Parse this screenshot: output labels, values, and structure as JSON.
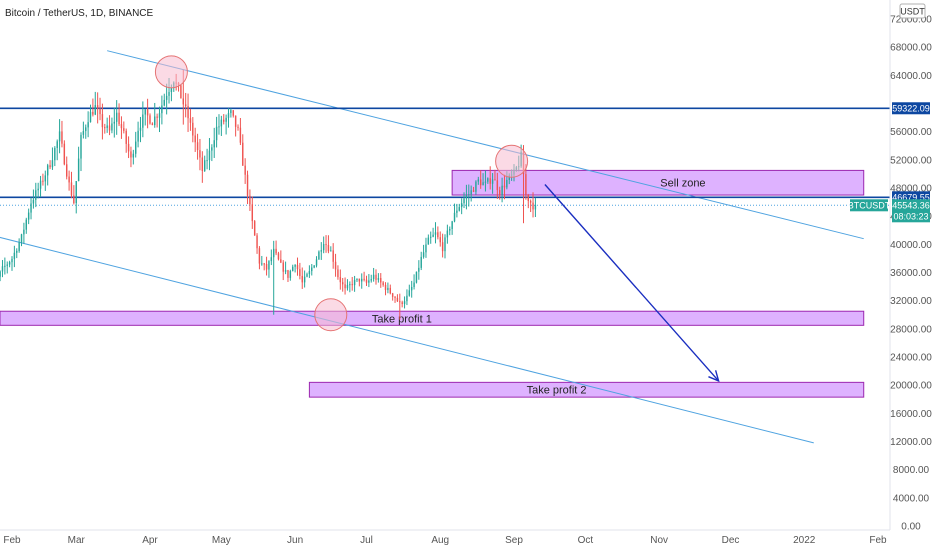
{
  "chart_data": {
    "type": "candlestick",
    "title": "Bitcoin / TetherUS, 1D, BINANCE",
    "currency_label": "USDT",
    "ylim": [
      0,
      75000
    ],
    "xlim_days": [
      0,
      365
    ],
    "y_ticks": [
      {
        "value": 0,
        "label": "0.00"
      },
      {
        "value": 4000,
        "label": "4000.00"
      },
      {
        "value": 8000,
        "label": "8000.00"
      },
      {
        "value": 12000,
        "label": "12000.00"
      },
      {
        "value": 16000,
        "label": "16000.00"
      },
      {
        "value": 20000,
        "label": "20000.00"
      },
      {
        "value": 24000,
        "label": "24000.00"
      },
      {
        "value": 28000,
        "label": "28000.00"
      },
      {
        "value": 32000,
        "label": "32000.00"
      },
      {
        "value": 36000,
        "label": "36000.00"
      },
      {
        "value": 40000,
        "label": "40000.00"
      },
      {
        "value": 44000,
        "label": "44000.00"
      },
      {
        "value": 48000,
        "label": "48000.00"
      },
      {
        "value": 52000,
        "label": "52000.00"
      },
      {
        "value": 56000,
        "label": "56000.00"
      },
      {
        "value": 60000,
        "label": "60000.00"
      },
      {
        "value": 64000,
        "label": "64000.00"
      },
      {
        "value": 68000,
        "label": "68000.00"
      },
      {
        "value": 72000,
        "label": "72000.00"
      }
    ],
    "x_ticks": [
      {
        "day": 12,
        "label": "Feb"
      },
      {
        "day": 39,
        "label": "Mar"
      },
      {
        "day": 70,
        "label": "Apr"
      },
      {
        "day": 100,
        "label": "May"
      },
      {
        "day": 131,
        "label": "Jun"
      },
      {
        "day": 161,
        "label": "Jul"
      },
      {
        "day": 192,
        "label": "Aug"
      },
      {
        "day": 223,
        "label": "Sep"
      },
      {
        "day": 253,
        "label": "Oct"
      },
      {
        "day": 284,
        "label": "Nov"
      },
      {
        "day": 314,
        "label": "Dec"
      },
      {
        "day": 345,
        "label": "2022"
      },
      {
        "day": 376,
        "label": "Feb"
      }
    ],
    "price_path": [
      [
        0,
        31500
      ],
      [
        4,
        34000
      ],
      [
        8,
        36500
      ],
      [
        12,
        38000
      ],
      [
        16,
        41000
      ],
      [
        20,
        46000
      ],
      [
        24,
        48500
      ],
      [
        28,
        51500
      ],
      [
        32,
        55500
      ],
      [
        36,
        48500
      ],
      [
        38,
        46000
      ],
      [
        41,
        55000
      ],
      [
        44,
        58000
      ],
      [
        47,
        59500
      ],
      [
        50,
        57000
      ],
      [
        53,
        56000
      ],
      [
        56,
        58500
      ],
      [
        59,
        55500
      ],
      [
        62,
        52000
      ],
      [
        65,
        56500
      ],
      [
        68,
        58500
      ],
      [
        71,
        57500
      ],
      [
        74,
        59000
      ],
      [
        77,
        61500
      ],
      [
        80,
        63500
      ],
      [
        83,
        61000
      ],
      [
        86,
        58000
      ],
      [
        89,
        54500
      ],
      [
        92,
        50500
      ],
      [
        95,
        53000
      ],
      [
        98,
        56500
      ],
      [
        101,
        57500
      ],
      [
        104,
        58500
      ],
      [
        107,
        56000
      ],
      [
        110,
        49500
      ],
      [
        113,
        43000
      ],
      [
        116,
        37500
      ],
      [
        119,
        36500
      ],
      [
        122,
        39000
      ],
      [
        125,
        37000
      ],
      [
        128,
        35500
      ],
      [
        131,
        37500
      ],
      [
        134,
        34500
      ],
      [
        137,
        36000
      ],
      [
        140,
        38000
      ],
      [
        143,
        40500
      ],
      [
        146,
        39000
      ],
      [
        149,
        35500
      ],
      [
        152,
        33500
      ],
      [
        155,
        34500
      ],
      [
        158,
        35000
      ],
      [
        161,
        34500
      ],
      [
        164,
        35500
      ],
      [
        167,
        34500
      ],
      [
        170,
        33500
      ],
      [
        173,
        32500
      ],
      [
        175,
        31500
      ],
      [
        178,
        32500
      ],
      [
        181,
        34500
      ],
      [
        184,
        38000
      ],
      [
        187,
        40500
      ],
      [
        190,
        41500
      ],
      [
        193,
        39500
      ],
      [
        196,
        42500
      ],
      [
        199,
        45000
      ],
      [
        202,
        46500
      ],
      [
        205,
        47500
      ],
      [
        208,
        49000
      ],
      [
        211,
        48500
      ],
      [
        214,
        49500
      ],
      [
        217,
        47500
      ],
      [
        220,
        49000
      ],
      [
        223,
        50000
      ],
      [
        225,
        51500
      ],
      [
        226,
        52500
      ],
      [
        227,
        50000
      ],
      [
        228,
        47000
      ],
      [
        229,
        46500
      ],
      [
        231,
        45500
      ],
      [
        232,
        45543.36
      ]
    ],
    "candle_wick_pct": 0.035,
    "extra_wicks": [
      {
        "day": 84,
        "high": 64800,
        "low": 57000
      },
      {
        "day": 227,
        "high": 52900,
        "low": 43000
      },
      {
        "day": 175,
        "high": 33000,
        "low": 29300
      },
      {
        "day": 122,
        "high": 40500,
        "low": 30000
      }
    ],
    "horizontal_lines": [
      {
        "name": "resistance",
        "value": 59322.09,
        "label": "59322.09",
        "color": "#0d47a1"
      },
      {
        "name": "breakdown",
        "value": 46679.55,
        "label": "46679.55",
        "color": "#0d47a1"
      }
    ],
    "last_price": {
      "value": 45543.36,
      "symbol": "BTCUSDT",
      "price_label": "45543.36",
      "countdown": "08:03:23",
      "color": "#26a69a"
    },
    "zones": [
      {
        "name": "sell-zone",
        "label": "Sell zone",
        "day_start": 197,
        "day_end": 370,
        "y_low": 47000,
        "y_high": 50500
      },
      {
        "name": "take-profit-1",
        "label": "Take profit 1",
        "day_start": -5,
        "day_end": 370,
        "y_low": 28500,
        "y_high": 30500
      },
      {
        "name": "take-profit-2",
        "label": "Take profit 2",
        "day_start": 137,
        "day_end": 370,
        "y_low": 18300,
        "y_high": 20400
      }
    ],
    "trend_lines": [
      {
        "name": "upper-channel-line",
        "p1": [
          52,
          67500
        ],
        "p2": [
          370,
          40800
        ],
        "color": "#4fa3e0"
      },
      {
        "name": "lower-channel-line",
        "p1": [
          -5,
          42000
        ],
        "p2": [
          349,
          11800
        ],
        "color": "#4fa3e0"
      }
    ],
    "circles": [
      {
        "name": "top-circle-april",
        "day": 79,
        "value": 64500
      },
      {
        "name": "top-circle-september",
        "day": 222,
        "value": 51800
      },
      {
        "name": "bottom-circle-june",
        "day": 146,
        "value": 30000
      }
    ],
    "projection_arrow": {
      "from": [
        236,
        48500
      ],
      "to": [
        309,
        20600
      ],
      "color": "#1a2ec0"
    },
    "colors": {
      "up": "#26a69a",
      "down": "#ef5350",
      "zone_fill": "#d8a5ff",
      "zone_stroke": "#9c27b0",
      "circle_fill": "#f8bbd0",
      "circle_stroke": "#e57373"
    }
  }
}
